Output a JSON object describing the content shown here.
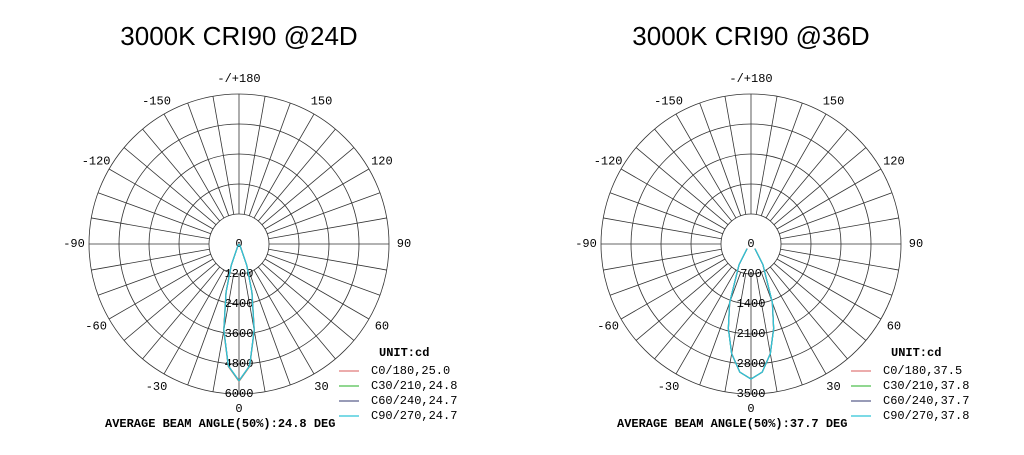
{
  "chart_data": [
    {
      "type": "polar",
      "title": "3000K CRI90 @24D",
      "rlim": [
        0,
        6000
      ],
      "rticks": [
        0,
        1200,
        2400,
        3600,
        4800,
        6000
      ],
      "thetaticks": [
        {
          "value": 180,
          "label": "-/+180"
        },
        150,
        120,
        90,
        60,
        30,
        0,
        -30,
        -60,
        -90,
        -120,
        -150
      ],
      "unit_label": "UNIT:cd",
      "legend": "lower right",
      "footer": "AVERAGE BEAM ANGLE(50%):24.8 DEG",
      "theta": [
        -40,
        -30,
        -20,
        -15,
        -10,
        -5,
        0,
        5,
        10,
        15,
        20,
        30,
        40
      ],
      "series": [
        {
          "name": "C0/180,25.0",
          "color": "#e07b7b",
          "values": [
            10,
            100,
            930,
            2030,
            3530,
            4920,
            5500,
            4920,
            3530,
            2030,
            930,
            100,
            10
          ]
        },
        {
          "name": "C30/210,24.8",
          "color": "#4fbf4f",
          "values": [
            10,
            95,
            910,
            2000,
            3500,
            4900,
            5480,
            4900,
            3500,
            2000,
            910,
            95,
            10
          ]
        },
        {
          "name": "C60/240,24.7",
          "color": "#5a5f8c",
          "values": [
            10,
            95,
            905,
            1990,
            3490,
            4890,
            5470,
            4890,
            3490,
            1990,
            905,
            95,
            10
          ]
        },
        {
          "name": "C90/270,24.7",
          "color": "#2fc4d8",
          "values": [
            10,
            95,
            905,
            1990,
            3490,
            4890,
            5470,
            4890,
            3490,
            1990,
            905,
            95,
            10
          ]
        }
      ]
    },
    {
      "type": "polar",
      "title": "3000K CRI90 @36D",
      "rlim": [
        0,
        3500
      ],
      "rticks": [
        0,
        700,
        1400,
        2100,
        2800,
        3500
      ],
      "thetaticks": [
        {
          "value": 180,
          "label": "-/+180"
        },
        150,
        120,
        90,
        60,
        30,
        0,
        -30,
        -60,
        -90,
        -120,
        -150
      ],
      "unit_label": "UNIT:cd",
      "legend": "lower right",
      "footer": "AVERAGE BEAM ANGLE(50%):37.7 DEG",
      "theta": [
        -40,
        -30,
        -20,
        -15,
        -10,
        -5,
        0,
        5,
        10,
        15,
        20,
        30,
        40
      ],
      "series": [
        {
          "name": "C0/180,37.5",
          "color": "#e07b7b",
          "values": [
            140,
            550,
            1450,
            2035,
            2595,
            3000,
            3150,
            3000,
            2595,
            2035,
            1450,
            550,
            140
          ]
        },
        {
          "name": "C30/210,37.8",
          "color": "#4fbf4f",
          "values": [
            145,
            560,
            1460,
            2045,
            2600,
            3000,
            3150,
            3000,
            2600,
            2045,
            1460,
            560,
            145
          ]
        },
        {
          "name": "C60/240,37.7",
          "color": "#5a5f8c",
          "values": [
            140,
            555,
            1455,
            2040,
            2598,
            3000,
            3150,
            3000,
            2598,
            2040,
            1455,
            555,
            140
          ]
        },
        {
          "name": "C90/270,37.8",
          "color": "#2fc4d8",
          "values": [
            145,
            560,
            1460,
            2045,
            2600,
            3000,
            3150,
            3000,
            2600,
            2045,
            1460,
            560,
            145
          ]
        }
      ]
    }
  ]
}
